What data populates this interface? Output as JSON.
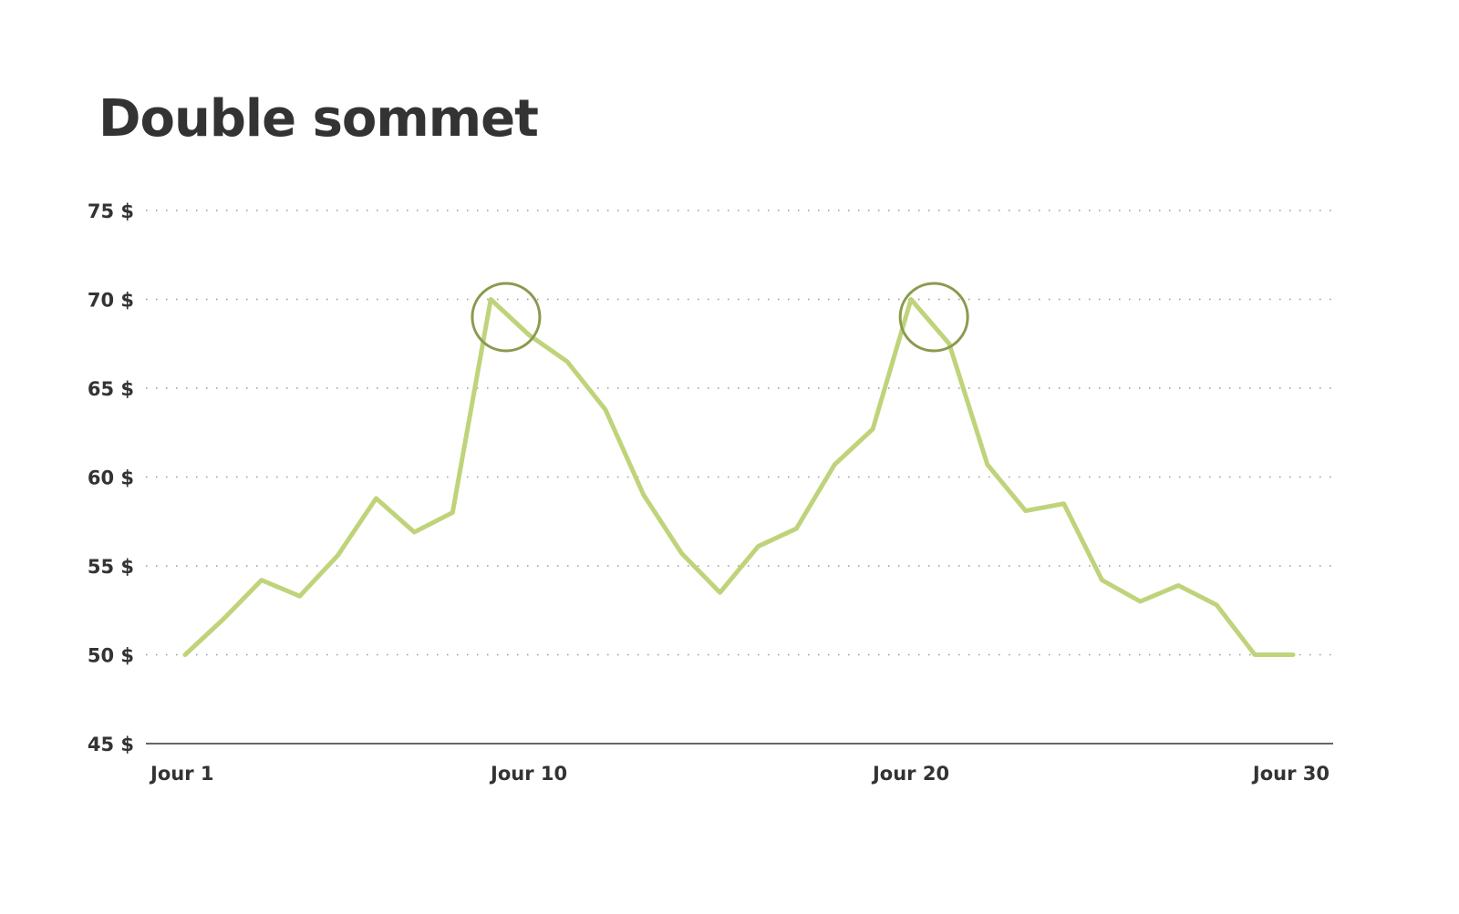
{
  "chart_data": {
    "type": "line",
    "title": "Double sommet",
    "xlabel": "",
    "ylabel": "",
    "x": [
      1,
      2,
      3,
      4,
      5,
      6,
      7,
      8,
      9,
      10,
      11,
      12,
      13,
      14,
      15,
      16,
      17,
      18,
      19,
      20,
      21,
      22,
      23,
      24,
      25,
      26,
      27,
      28,
      29,
      30
    ],
    "series": [
      {
        "values": [
          50,
          52,
          54.2,
          53.3,
          55.6,
          58.8,
          56.9,
          58,
          70,
          68,
          66.5,
          63.8,
          59,
          55.7,
          53.5,
          56.1,
          57.1,
          60.7,
          62.7,
          70,
          67.5,
          60.7,
          58.1,
          58.5,
          54.2,
          53,
          53.9,
          52.8,
          50,
          50
        ],
        "color": "#bfd47a"
      }
    ],
    "ylim": [
      45,
      75
    ],
    "xlim": [
      1,
      30
    ],
    "y_ticks": [
      {
        "value": 45,
        "label": "45 $"
      },
      {
        "value": 50,
        "label": "50 $"
      },
      {
        "value": 55,
        "label": "55 $"
      },
      {
        "value": 60,
        "label": "60 $"
      },
      {
        "value": 65,
        "label": "65 $"
      },
      {
        "value": 70,
        "label": "70 $"
      },
      {
        "value": 75,
        "label": "75 $"
      }
    ],
    "x_ticks": [
      {
        "value": 1,
        "label": "Jour 1"
      },
      {
        "value": 10,
        "label": "Jour 10"
      },
      {
        "value": 20,
        "label": "Jour 20"
      },
      {
        "value": 30,
        "label": "Jour 30"
      }
    ],
    "grid": "horizontal dotted",
    "annotations": [
      {
        "type": "circle",
        "x": 9.4,
        "y": 69,
        "color": "#8a9a4e"
      },
      {
        "type": "circle",
        "x": 20.6,
        "y": 69,
        "color": "#8a9a4e"
      }
    ]
  }
}
